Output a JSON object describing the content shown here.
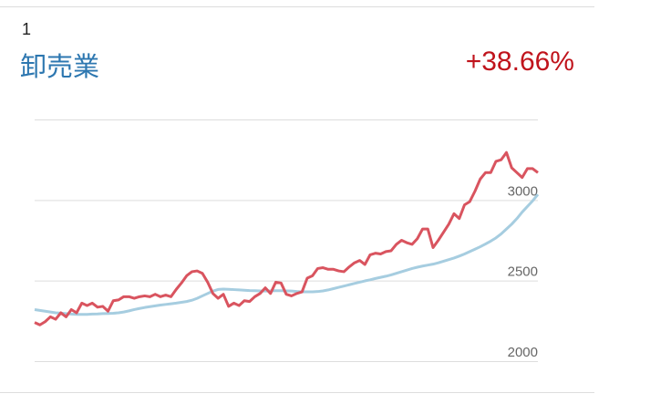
{
  "rank": "1",
  "title": "卸売業",
  "change": "+38.66%",
  "chart_data": {
    "type": "line",
    "ylim": [
      2000,
      3500
    ],
    "yticks": [
      2000,
      2500,
      3000
    ],
    "grid": true,
    "series": [
      {
        "color": "#a6cde0",
        "values": [
          2320,
          2315,
          2310,
          2305,
          2300,
          2298,
          2295,
          2292,
          2290,
          2290,
          2290,
          2292,
          2293,
          2295,
          2296,
          2297,
          2300,
          2305,
          2312,
          2320,
          2327,
          2333,
          2338,
          2343,
          2348,
          2352,
          2356,
          2360,
          2365,
          2370,
          2378,
          2390,
          2405,
          2420,
          2435,
          2445,
          2447,
          2446,
          2444,
          2442,
          2440,
          2438,
          2437,
          2436,
          2435,
          2436,
          2437,
          2437,
          2436,
          2435,
          2432,
          2430,
          2430,
          2430,
          2432,
          2436,
          2442,
          2450,
          2458,
          2466,
          2474,
          2482,
          2490,
          2498,
          2505,
          2513,
          2520,
          2527,
          2535,
          2545,
          2555,
          2565,
          2575,
          2583,
          2590,
          2596,
          2602,
          2610,
          2620,
          2630,
          2640,
          2652,
          2665,
          2680,
          2695,
          2710,
          2727,
          2745,
          2765,
          2790,
          2820,
          2850,
          2885,
          2925,
          2960,
          2995,
          3035
        ]
      },
      {
        "color": "#d9545f",
        "values": [
          2240,
          2225,
          2245,
          2275,
          2260,
          2300,
          2275,
          2320,
          2300,
          2360,
          2345,
          2360,
          2335,
          2340,
          2310,
          2375,
          2380,
          2400,
          2400,
          2390,
          2400,
          2405,
          2400,
          2415,
          2400,
          2410,
          2400,
          2445,
          2485,
          2530,
          2555,
          2560,
          2545,
          2490,
          2420,
          2390,
          2415,
          2340,
          2360,
          2345,
          2375,
          2370,
          2400,
          2420,
          2455,
          2420,
          2490,
          2485,
          2415,
          2405,
          2420,
          2430,
          2515,
          2530,
          2575,
          2580,
          2570,
          2570,
          2560,
          2555,
          2585,
          2610,
          2625,
          2600,
          2660,
          2670,
          2665,
          2680,
          2685,
          2725,
          2750,
          2735,
          2725,
          2760,
          2820,
          2820,
          2705,
          2750,
          2800,
          2850,
          2915,
          2885,
          2970,
          2990,
          3055,
          3130,
          3170,
          3170,
          3240,
          3250,
          3295,
          3200,
          3170,
          3140,
          3195,
          3195,
          3170
        ]
      }
    ]
  }
}
